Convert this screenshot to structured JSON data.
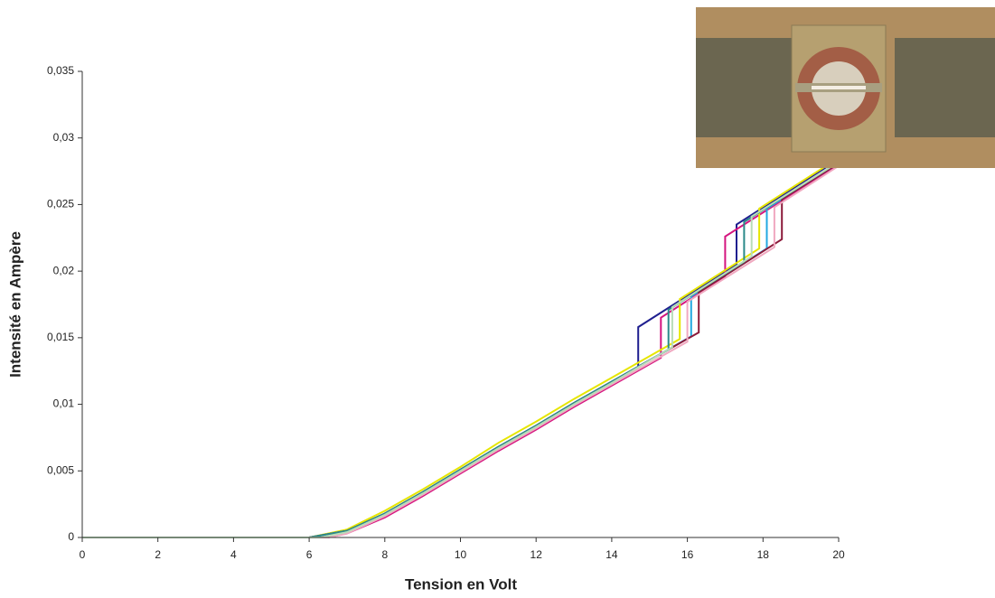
{
  "chart_data": {
    "type": "line",
    "x_label": "Tension en Volt",
    "y_label": "Intensité en Ampère",
    "xlim": [
      0,
      20
    ],
    "ylim": [
      0,
      0.035
    ],
    "xticks": [
      0,
      2,
      4,
      6,
      8,
      10,
      12,
      14,
      16,
      18,
      20
    ],
    "yticks": [
      0,
      {
        "value": 0.005,
        "label": "0,005"
      },
      {
        "value": 0.01,
        "label": "0,01"
      },
      {
        "value": 0.015,
        "label": "0,015"
      },
      {
        "value": 0.02,
        "label": "0,02"
      },
      {
        "value": 0.025,
        "label": "0,025"
      },
      {
        "value": 0.03,
        "label": "0,03"
      },
      {
        "value": 0.035,
        "label": "0,035"
      }
    ],
    "grid": false,
    "series": [
      {
        "color": "#1f1f8f",
        "x": [
          0,
          6,
          7,
          8,
          9,
          10,
          11,
          12,
          13,
          14,
          14.7,
          14.7,
          17.3,
          17.3,
          20
        ],
        "values": [
          0,
          0,
          0.0005,
          0.0018,
          0.0034,
          0.0051,
          0.0068,
          0.0084,
          0.0101,
          0.0117,
          0.0128,
          0.0158,
          0.0205,
          0.0235,
          0.0284
        ]
      },
      {
        "color": "#d4157f",
        "x": [
          0,
          6.5,
          7,
          8,
          9,
          10,
          11,
          12,
          13,
          14,
          15.3,
          15.3,
          17.0,
          17.0,
          20
        ],
        "values": [
          0,
          0,
          0.0003,
          0.0015,
          0.0031,
          0.0048,
          0.0065,
          0.0081,
          0.0098,
          0.0114,
          0.0135,
          0.0165,
          0.0196,
          0.0226,
          0.028
        ]
      },
      {
        "color": "#e6e600",
        "x": [
          0,
          6,
          7,
          8,
          9,
          10,
          11,
          12,
          13,
          14,
          15.8,
          15.8,
          17.9,
          17.9,
          20
        ],
        "values": [
          0,
          0,
          0.0006,
          0.002,
          0.0036,
          0.0053,
          0.0071,
          0.0087,
          0.0104,
          0.012,
          0.0149,
          0.0179,
          0.0217,
          0.0247,
          0.0285
        ]
      },
      {
        "color": "#22a8e0",
        "x": [
          0,
          6,
          7,
          8,
          9,
          10,
          11,
          12,
          13,
          14,
          16.1,
          16.1,
          18.1,
          18.1,
          20
        ],
        "values": [
          0,
          0,
          0.0005,
          0.0018,
          0.0034,
          0.0051,
          0.0068,
          0.0084,
          0.0101,
          0.0117,
          0.0151,
          0.0181,
          0.0217,
          0.0247,
          0.0281
        ]
      },
      {
        "color": "#8b1a3a",
        "x": [
          0,
          6,
          7,
          8,
          9,
          10,
          11,
          12,
          13,
          14,
          16.3,
          16.3,
          18.5,
          18.5,
          20
        ],
        "values": [
          0,
          0,
          0.0005,
          0.0018,
          0.0034,
          0.0051,
          0.0068,
          0.0084,
          0.0101,
          0.0117,
          0.0154,
          0.0184,
          0.0224,
          0.0254,
          0.0281
        ]
      },
      {
        "color": "#2a8a8a",
        "x": [
          0,
          6,
          7,
          8,
          9,
          10,
          11,
          12,
          13,
          14,
          15.5,
          15.5,
          17.5,
          17.5,
          20
        ],
        "values": [
          0,
          0,
          0.0005,
          0.0018,
          0.0034,
          0.0051,
          0.0068,
          0.0084,
          0.0101,
          0.0117,
          0.0141,
          0.0171,
          0.0207,
          0.0237,
          0.0282
        ]
      },
      {
        "color": "#f0a8c0",
        "x": [
          0,
          6.5,
          7,
          8,
          9,
          10,
          11,
          12,
          13,
          14,
          16.0,
          16.0,
          18.3,
          18.3,
          20
        ],
        "values": [
          0,
          0,
          0.0003,
          0.0016,
          0.0032,
          0.0049,
          0.0066,
          0.0082,
          0.0099,
          0.0115,
          0.0147,
          0.0177,
          0.0218,
          0.0248,
          0.0279
        ]
      },
      {
        "color": "#b8dcb8",
        "x": [
          0,
          6.3,
          7,
          8,
          9,
          10,
          11,
          12,
          13,
          14,
          15.6,
          15.6,
          17.7,
          17.7,
          20
        ],
        "values": [
          0,
          0,
          0.0004,
          0.0017,
          0.0033,
          0.005,
          0.0067,
          0.0083,
          0.01,
          0.0116,
          0.0143,
          0.0173,
          0.0211,
          0.0241,
          0.0282
        ]
      }
    ]
  }
}
